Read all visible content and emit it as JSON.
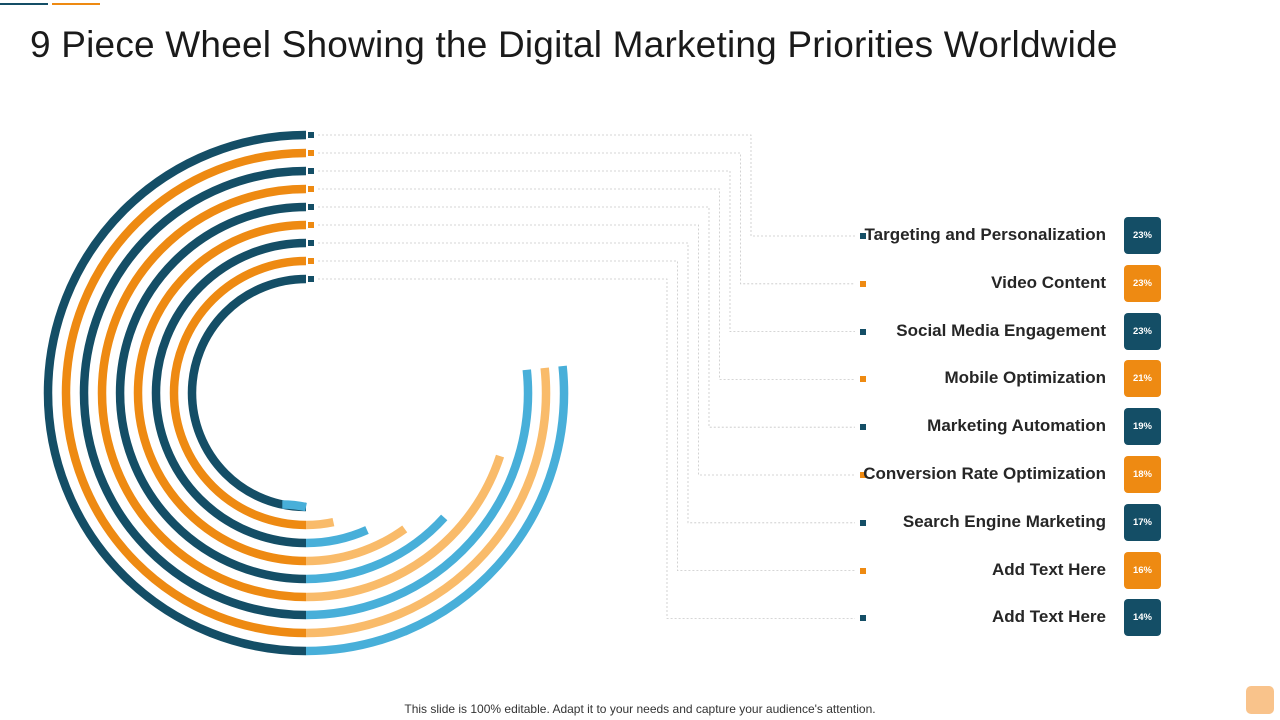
{
  "title": "9 Piece Wheel Showing the Digital Marketing Priorities Worldwide",
  "footer": "This slide is 100% editable. Adapt it to your needs and capture your audience's attention.",
  "colors": {
    "dark_teal": "#144e66",
    "orange": "#ee8a12",
    "light_blue": "#48afd9",
    "light_orange": "#f9bb6a",
    "accent_corner": "#f9c38b",
    "connector": "#c8c8c8"
  },
  "chart_data": {
    "type": "radial-bar",
    "title": "9 Piece Wheel Showing the Digital Marketing Priorities Worldwide",
    "categories": [
      "Targeting and Personalization",
      "Video Content",
      "Social Media Engagement",
      "Mobile Optimization",
      "Marketing Automation",
      "Conversion Rate Optimization",
      "Search Engine Marketing",
      "Add Text Here",
      "Add Text Here"
    ],
    "values": [
      23,
      23,
      23,
      21,
      19,
      18,
      17,
      16,
      14
    ],
    "value_labels": [
      "23%",
      "23%",
      "23%",
      "21%",
      "19%",
      "18%",
      "17%",
      "16%",
      "14%"
    ],
    "value_unit": "%",
    "legend_position": "right"
  }
}
